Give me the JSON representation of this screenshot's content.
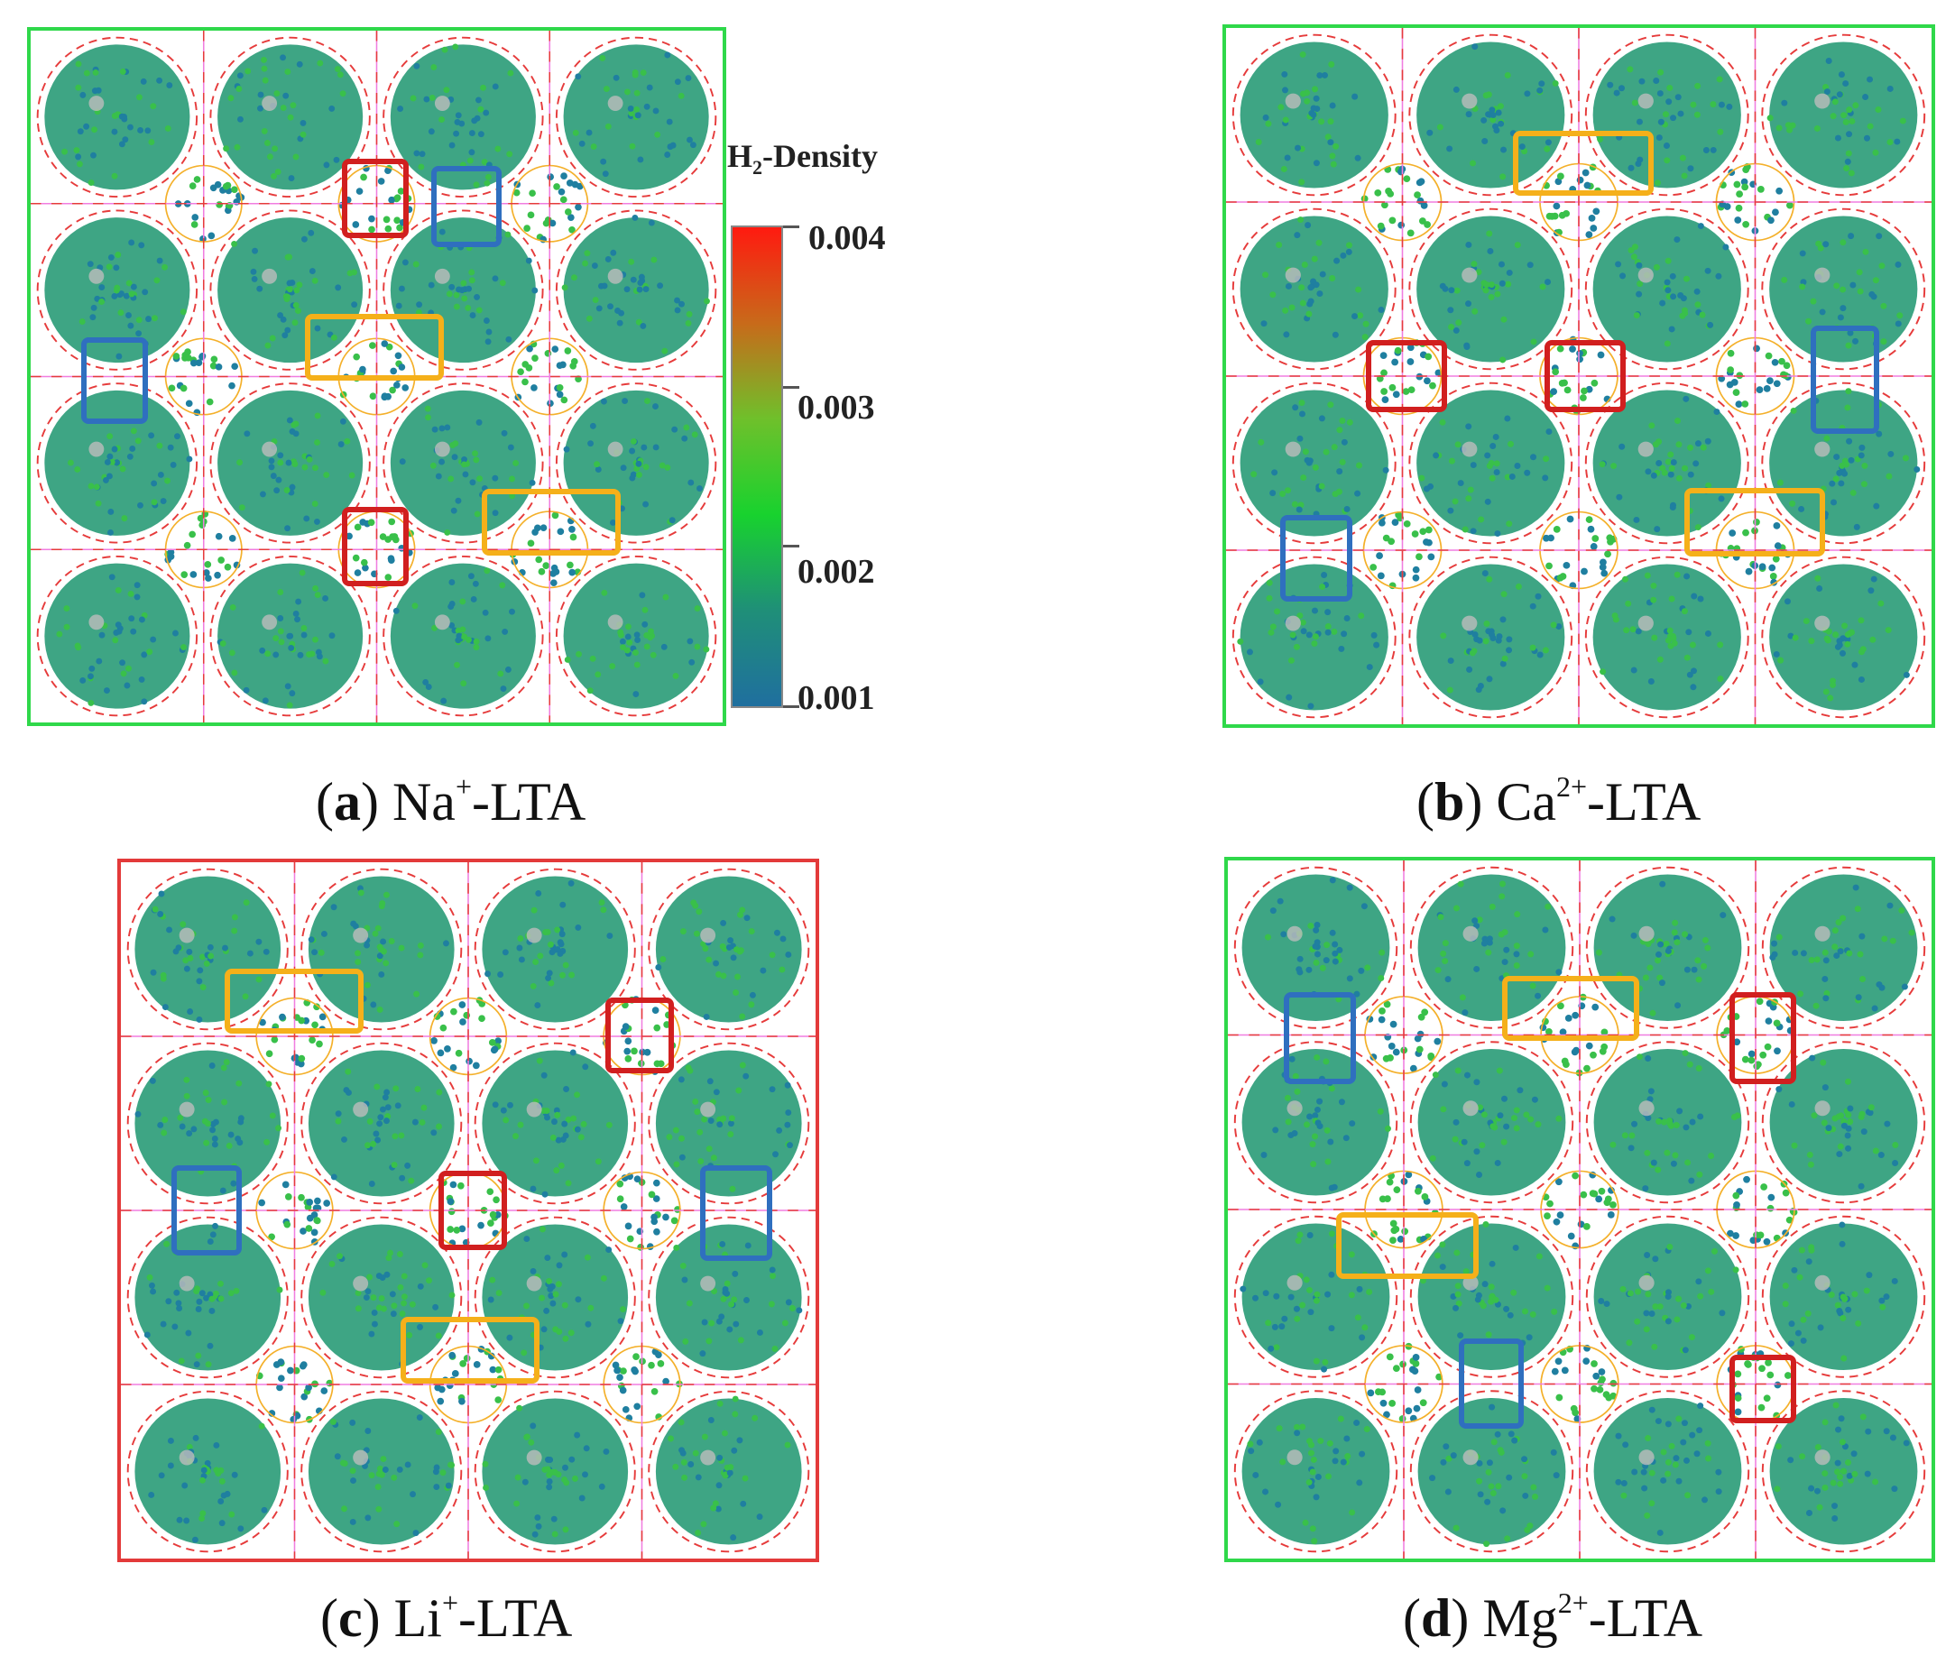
{
  "colors": {
    "cage_fill": "#2e9d7a",
    "cage_dot_a": "#1f7fa0",
    "cage_dot_b": "#39c04a",
    "frame_red": "#e63b3b",
    "frame_pink": "#f07de0",
    "frame_orange": "#f4b02a",
    "box_red": "#d11f1f",
    "box_blue": "#2f6fbf",
    "box_orange": "#f5b01a",
    "border_green": "#2fd84a",
    "border_red": "#e33a3a"
  },
  "colorbar": {
    "title_main": "H",
    "title_sub": "2",
    "title_rest": "-Density",
    "ticks": [
      "0.004",
      "0.003",
      "0.002",
      "0.001"
    ],
    "gradient": [
      "#ff1a10",
      "#c86a1a",
      "#6fc02b",
      "#18d22e",
      "#1f8f78",
      "#1f6f9f"
    ]
  },
  "panels": [
    {
      "id": "a",
      "letter": "a",
      "ion": "Na",
      "charge": "+",
      "suffix": "-LTA",
      "border": "border_green"
    },
    {
      "id": "b",
      "letter": "b",
      "ion": "Ca",
      "charge": "2+",
      "suffix": "-LTA",
      "border": "border_green"
    },
    {
      "id": "c",
      "letter": "c",
      "ion": "Li",
      "charge": "+",
      "suffix": "-LTA",
      "border": "border_red"
    },
    {
      "id": "d",
      "letter": "d",
      "ion": "Mg",
      "charge": "2+",
      "suffix": "-LTA",
      "border": "border_green"
    }
  ]
}
